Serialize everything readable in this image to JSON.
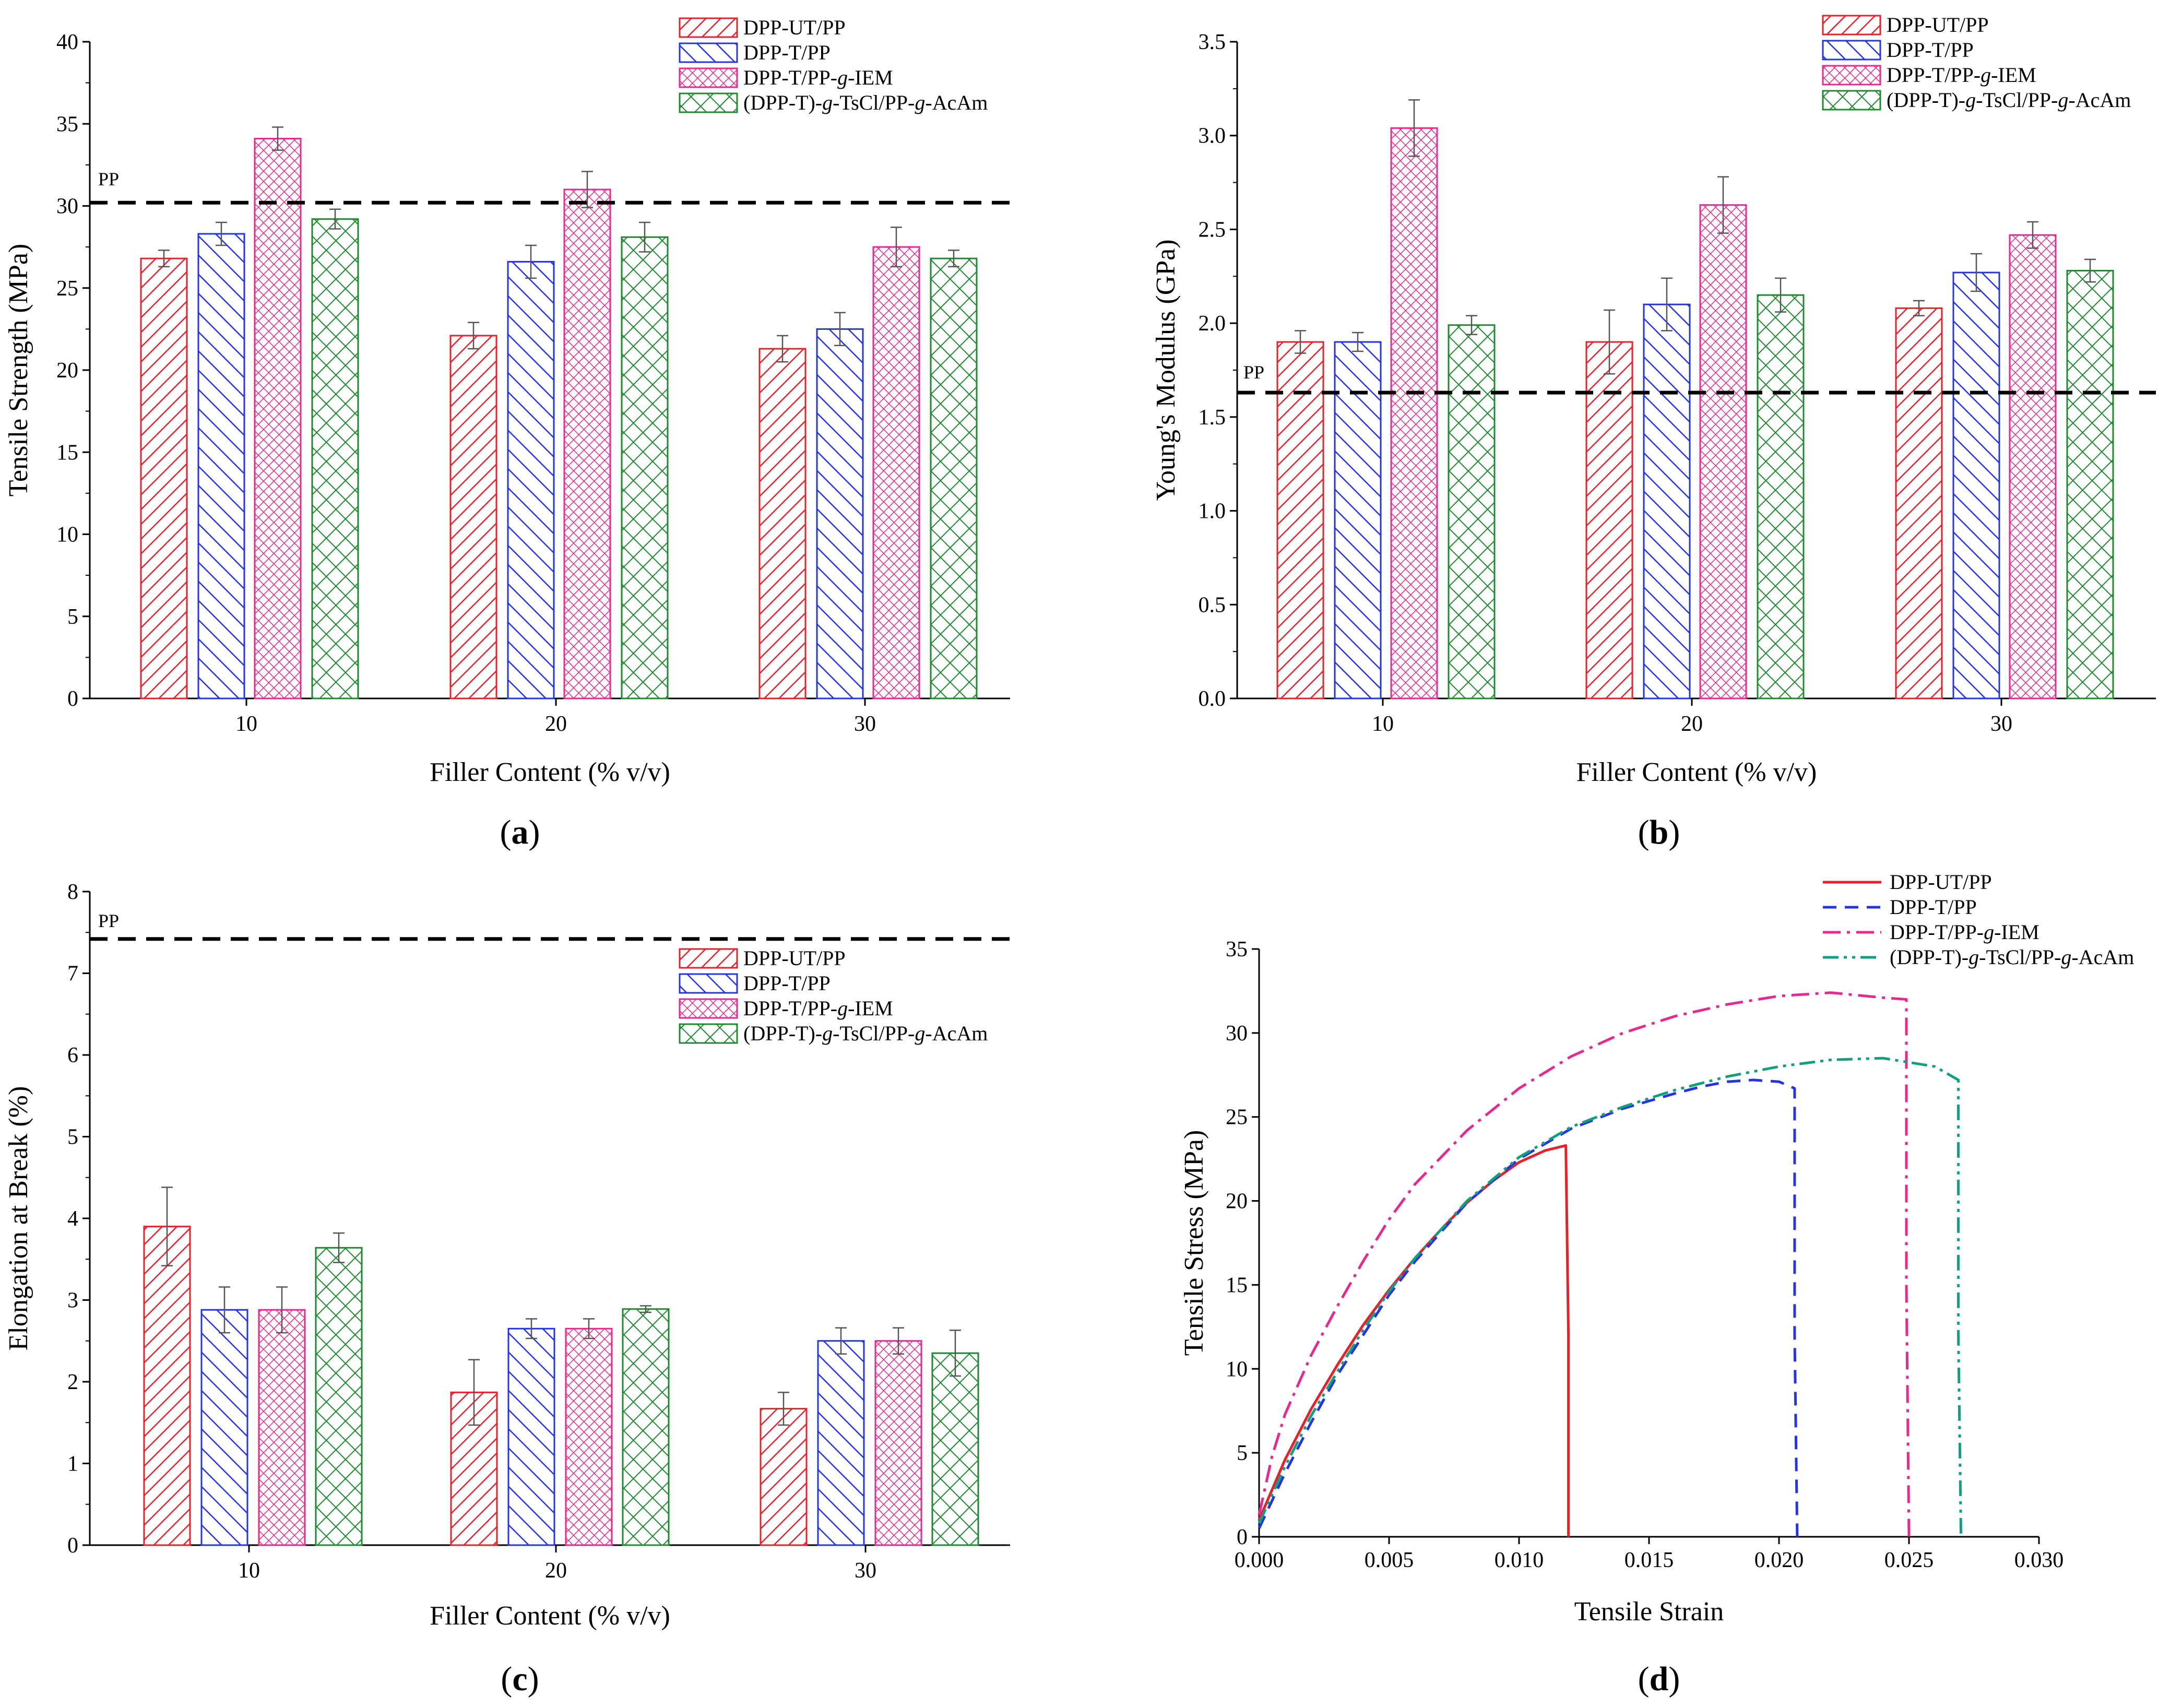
{
  "colors": {
    "s0": "#e8202a",
    "s1": "#2233e8",
    "s2": "#e8288e",
    "s3": "#1e8a2e",
    "ppline": "#000000",
    "d3": "#10a080"
  },
  "panels": {
    "a": {
      "caption": "(a)",
      "caption_letter": "a",
      "pp_label": "PP",
      "legend": [
        "DPP-UT/PP",
        "DPP-T/PP",
        "DPP-T/PP-",
        "IEM",
        "(DPP-T)-",
        "TsCl/PP-",
        "AcAm"
      ],
      "legend_g": "g",
      "legend_g2": "g",
      "legend_g3": "g",
      "legend_plain": [
        "DPP-T/PP-g-IEM",
        "(DPP-T)-g-TsCl/PP-g-AcAm"
      ]
    },
    "b": {
      "caption": "(b)",
      "caption_letter": "b",
      "pp_label": "PP"
    },
    "c": {
      "caption": "(c)",
      "caption_letter": "c",
      "pp_label": "PP"
    },
    "d": {
      "caption": "(d)",
      "caption_letter": "d"
    }
  },
  "chart_data": [
    {
      "id": "a",
      "type": "bar",
      "title": "",
      "xlabel": "Filler Content (% v/v)",
      "ylabel": "Tensile Strength (MPa)",
      "categories": [
        "10",
        "20",
        "30"
      ],
      "ylim": [
        0,
        40
      ],
      "yticks": [
        0,
        5,
        10,
        15,
        20,
        25,
        30,
        35,
        40
      ],
      "ytick_labels": [
        "0",
        "5",
        "10",
        "15",
        "20",
        "25",
        "30",
        "35",
        "40"
      ],
      "reference_line": {
        "label": "PP",
        "value": 30.2
      },
      "series": [
        {
          "name": "DPP-UT/PP",
          "values": [
            26.8,
            22.1,
            21.3
          ],
          "errors": [
            0.5,
            0.8,
            0.8
          ]
        },
        {
          "name": "DPP-T/PP",
          "values": [
            28.3,
            26.6,
            22.5
          ],
          "errors": [
            0.7,
            1.0,
            1.0
          ]
        },
        {
          "name": "DPP-T/PP-g-IEM",
          "values": [
            34.1,
            31.0,
            27.5
          ],
          "errors": [
            0.7,
            1.1,
            1.2
          ]
        },
        {
          "name": "(DPP-T)-g-TsCl/PP-g-AcAm",
          "values": [
            29.2,
            28.1,
            26.8
          ],
          "errors": [
            0.6,
            0.9,
            0.5
          ]
        }
      ],
      "legend_labels": [
        "DPP-UT/PP",
        "DPP-T/PP",
        "DPP-T/PP-g-IEM",
        "(DPP-T)-g-TsCl/PP-g-AcAm"
      ]
    },
    {
      "id": "b",
      "type": "bar",
      "title": "",
      "xlabel": "Filler Content (% v/v)",
      "ylabel": "Young's Modulus (GPa)",
      "categories": [
        "10",
        "20",
        "30"
      ],
      "ylim": [
        0,
        3.5
      ],
      "yticks": [
        0,
        0.5,
        1,
        1.5,
        2,
        2.5,
        3,
        3.5
      ],
      "ytick_labels": [
        "0.0",
        "0.5",
        "1.0",
        "1.5",
        "2.0",
        "2.5",
        "3.0",
        "3.5"
      ],
      "reference_line": {
        "label": "PP",
        "value": 1.63
      },
      "series": [
        {
          "name": "DPP-UT/PP",
          "values": [
            1.9,
            1.9,
            2.08
          ],
          "errors": [
            0.06,
            0.17,
            0.04
          ]
        },
        {
          "name": "DPP-T/PP",
          "values": [
            1.9,
            2.1,
            2.27
          ],
          "errors": [
            0.05,
            0.14,
            0.1
          ]
        },
        {
          "name": "DPP-T/PP-g-IEM",
          "values": [
            3.04,
            2.63,
            2.47
          ],
          "errors": [
            0.15,
            0.15,
            0.07
          ]
        },
        {
          "name": "(DPP-T)-g-TsCl/PP-g-AcAm",
          "values": [
            1.99,
            2.15,
            2.28
          ],
          "errors": [
            0.05,
            0.09,
            0.06
          ]
        }
      ],
      "legend_labels": [
        "DPP-UT/PP",
        "DPP-T/PP",
        "DPP-T/PP-g-IEM",
        "(DPP-T)-g-TsCl/PP-g-AcAm"
      ]
    },
    {
      "id": "c",
      "type": "bar",
      "title": "",
      "xlabel": "Filler Content (% v/v)",
      "ylabel": "Elongation at Break (%)",
      "categories": [
        "10",
        "20",
        "30"
      ],
      "ylim": [
        0,
        8
      ],
      "yticks": [
        0,
        1,
        2,
        3,
        4,
        5,
        6,
        7,
        8
      ],
      "ytick_labels": [
        "0",
        "1",
        "2",
        "3",
        "4",
        "5",
        "6",
        "7",
        "8"
      ],
      "reference_line": {
        "label": "PP",
        "value": 7.42
      },
      "series": [
        {
          "name": "DPP-UT/PP",
          "values": [
            3.9,
            1.87,
            1.67
          ],
          "errors": [
            0.48,
            0.4,
            0.2
          ]
        },
        {
          "name": "DPP-T/PP",
          "values": [
            2.88,
            2.65,
            2.5
          ],
          "errors": [
            0.28,
            0.12,
            0.16
          ]
        },
        {
          "name": "DPP-T/PP-g-IEM",
          "values": [
            2.88,
            2.65,
            2.5
          ],
          "errors": [
            0.28,
            0.12,
            0.16
          ]
        },
        {
          "name": "(DPP-T)-g-TsCl/PP-g-AcAm",
          "values": [
            3.64,
            2.89,
            2.35
          ],
          "errors": [
            0.18,
            0.04,
            0.28
          ]
        }
      ],
      "legend_labels": [
        "DPP-UT/PP",
        "DPP-T/PP",
        "DPP-T/PP-g-IEM",
        "(DPP-T)-g-TsCl/PP-g-AcAm"
      ]
    },
    {
      "id": "d",
      "type": "line",
      "title": "",
      "xlabel": "Tensile Strain",
      "ylabel": "Tensile Stress (MPa)",
      "xlim": [
        0,
        0.03
      ],
      "ylim": [
        0,
        35
      ],
      "xticks": [
        0,
        0.005,
        0.01,
        0.015,
        0.02,
        0.025,
        0.03
      ],
      "xtick_labels": [
        "0.000",
        "0.005",
        "0.010",
        "0.015",
        "0.020",
        "0.025",
        "0.030"
      ],
      "yticks": [
        0,
        5,
        10,
        15,
        20,
        25,
        30,
        35
      ],
      "ytick_labels": [
        "0",
        "5",
        "10",
        "15",
        "20",
        "25",
        "30",
        "35"
      ],
      "series": [
        {
          "name": "DPP-UT/PP",
          "style": "solid",
          "x": [
            0,
            0.001,
            0.002,
            0.003,
            0.004,
            0.005,
            0.006,
            0.007,
            0.008,
            0.009,
            0.01,
            0.011,
            0.0118,
            0.0119,
            0.0119
          ],
          "y": [
            1.0,
            4.6,
            7.6,
            10.2,
            12.6,
            14.7,
            16.6,
            18.3,
            19.9,
            21.2,
            22.3,
            23.0,
            23.3,
            12.0,
            0
          ]
        },
        {
          "name": "DPP-T/PP",
          "style": "dashed",
          "x": [
            0,
            0.001,
            0.002,
            0.003,
            0.004,
            0.005,
            0.006,
            0.008,
            0.01,
            0.012,
            0.014,
            0.016,
            0.017,
            0.018,
            0.019,
            0.02,
            0.0206,
            0.0206,
            0.0207
          ],
          "y": [
            0.5,
            3.8,
            6.8,
            9.6,
            12.0,
            14.4,
            16.4,
            19.9,
            22.5,
            24.3,
            25.5,
            26.4,
            26.8,
            27.1,
            27.2,
            27.1,
            26.7,
            12.0,
            0
          ]
        },
        {
          "name": "DPP-T/PP-g-IEM",
          "style": "dashdot",
          "x": [
            0,
            0.0005,
            0.001,
            0.002,
            0.003,
            0.004,
            0.005,
            0.006,
            0.008,
            0.01,
            0.012,
            0.014,
            0.016,
            0.018,
            0.02,
            0.022,
            0.024,
            0.0249,
            0.0249,
            0.025
          ],
          "y": [
            1.3,
            4.8,
            7.3,
            10.8,
            13.7,
            16.4,
            18.9,
            21.0,
            24.2,
            26.7,
            28.6,
            30.0,
            31.0,
            31.7,
            32.2,
            32.4,
            32.1,
            32.0,
            15.0,
            0
          ]
        },
        {
          "name": "(DPP-T)-g-TsCl/PP-g-AcAm",
          "style": "dashdotdot",
          "x": [
            0,
            0.001,
            0.002,
            0.003,
            0.004,
            0.005,
            0.006,
            0.008,
            0.01,
            0.012,
            0.014,
            0.016,
            0.018,
            0.02,
            0.022,
            0.024,
            0.026,
            0.0269,
            0.0269,
            0.027
          ],
          "y": [
            0.8,
            4.2,
            7.2,
            9.8,
            12.3,
            14.6,
            16.6,
            20.0,
            22.6,
            24.4,
            25.6,
            26.6,
            27.4,
            28.0,
            28.4,
            28.5,
            28.0,
            27.2,
            12.0,
            0
          ]
        }
      ],
      "legend_labels": [
        "DPP-UT/PP",
        "DPP-T/PP",
        "DPP-T/PP-g-IEM",
        "(DPP-T)-g-TsCl/PP-g-AcAm"
      ]
    }
  ]
}
